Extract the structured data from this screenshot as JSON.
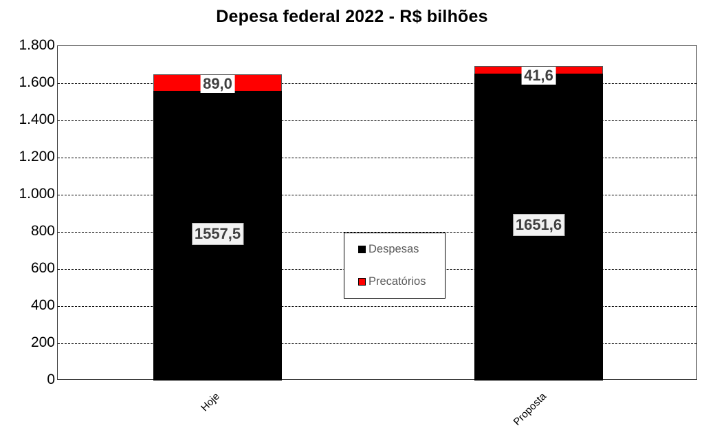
{
  "chart_data": {
    "type": "bar",
    "stacked": true,
    "title": "Depesa federal 2022 - R$ bilhões",
    "xlabel": "",
    "ylabel": "",
    "categories": [
      "Hoje",
      "Proposta"
    ],
    "series": [
      {
        "name": "Despesas",
        "color": "#000000",
        "values": [
          1557.5,
          1651.6
        ],
        "labels": [
          "1557,5",
          "1651,6"
        ]
      },
      {
        "name": "Precatórios",
        "color": "#ff0000",
        "values": [
          89.0,
          41.6
        ],
        "labels": [
          "89,0",
          "41,6"
        ]
      }
    ],
    "ylim": [
      0,
      1800
    ],
    "yticks": [
      0,
      200,
      400,
      600,
      800,
      1000,
      1200,
      1400,
      1600,
      1800
    ],
    "ytick_labels": [
      "0",
      "200",
      "400",
      "600",
      "800",
      "1.000",
      "1.200",
      "1.400",
      "1.600",
      "1.800"
    ],
    "grid": "horizontal dashed",
    "legend_position": "center"
  },
  "title": "Depesa federal 2022 - R$ bilhões",
  "legend": {
    "items": [
      {
        "label": "Despesas",
        "color": "#000000"
      },
      {
        "label": "Precatórios",
        "color": "#ff0000"
      }
    ]
  },
  "bars": [
    {
      "category": "Hoje",
      "despesas_label": "1557,5",
      "precatorios_label": "89,0"
    },
    {
      "category": "Proposta",
      "despesas_label": "1651,6",
      "precatorios_label": "41,6"
    }
  ]
}
